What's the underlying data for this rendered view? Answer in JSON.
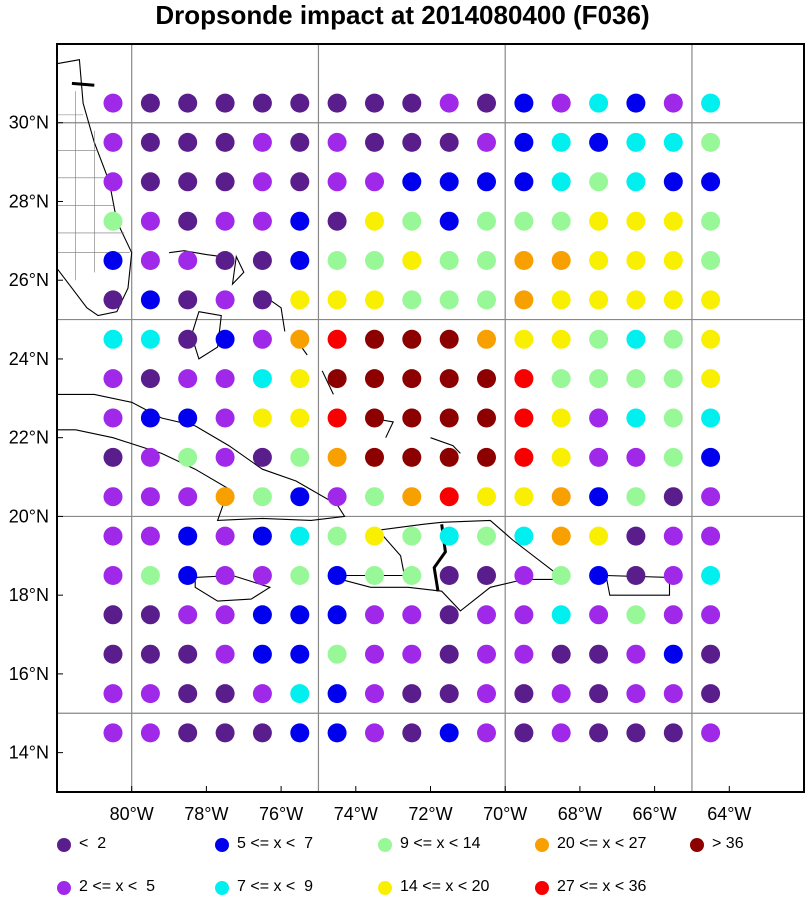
{
  "title": "Dropsonde impact at 2014080400 (F036)",
  "axes": {
    "lon_ticks": [
      "80°W",
      "78°W",
      "76°W",
      "74°W",
      "72°W",
      "70°W",
      "68°W",
      "66°W",
      "64°W"
    ],
    "lat_ticks": [
      "30°N",
      "28°N",
      "26°N",
      "24°N",
      "22°N",
      "20°N",
      "18°N",
      "16°N",
      "14°N"
    ],
    "lon_range": [
      -82,
      -62
    ],
    "lat_range": [
      13,
      32
    ]
  },
  "colors": {
    "c0": "#5a1e8c",
    "c1": "#a028e8",
    "c2": "#0000ee",
    "c3": "#00f0f0",
    "c4": "#98f898",
    "c5": "#f8f000",
    "c6": "#f8a000",
    "c7": "#f80000",
    "c8": "#8c0000"
  },
  "legend": [
    {
      "key": "c0",
      "label": "<  2"
    },
    {
      "key": "c1",
      "label": "2 <= x <  5"
    },
    {
      "key": "c2",
      "label": "5 <= x <  7"
    },
    {
      "key": "c3",
      "label": "7 <= x <  9"
    },
    {
      "key": "c4",
      "label": "9 <= x < 14"
    },
    {
      "key": "c5",
      "label": "14 <= x < 20"
    },
    {
      "key": "c6",
      "label": "20 <= x < 27"
    },
    {
      "key": "c7",
      "label": "27 <= x < 36"
    },
    {
      "key": "c8",
      "label": "> 36"
    }
  ],
  "chart_data": {
    "type": "scatter",
    "title": "Dropsonde impact at 2014080400 (F036)",
    "lons": [
      -80.5,
      -79.5,
      -78.5,
      -77.5,
      -76.5,
      -75.5,
      -74.5,
      -73.5,
      -72.5,
      -71.5,
      -70.5,
      -69.5,
      -68.5,
      -67.5,
      -66.5,
      -65.5,
      -64.5
    ],
    "lats": [
      30.5,
      29.5,
      28.5,
      27.5,
      26.5,
      25.5,
      24.5,
      23.5,
      22.5,
      21.5,
      20.5,
      19.5,
      18.5,
      17.5,
      16.5,
      15.5,
      14.5
    ],
    "category_rows": [
      "1,0,0,0,0,0,0,0,0,1,0,2,1,3,2,1,3",
      "1,0,0,0,1,0,1,0,0,0,1,2,3,2,3,3,4",
      "1,0,0,0,1,0,1,1,2,2,2,2,3,4,3,2,2",
      "4,1,0,1,1,2,0,5,4,2,4,4,4,5,5,5,4",
      "2,1,1,0,0,2,4,4,5,4,4,6,6,5,5,5,4",
      "0,2,0,1,0,5,5,5,4,4,4,6,5,5,5,5,5",
      "3,3,0,2,1,6,7,8,8,8,6,5,5,4,3,4,5",
      "1,0,1,1,3,5,8,8,8,8,8,7,4,4,4,4,5",
      "1,2,2,1,5,5,7,8,8,8,8,7,5,1,3,4,3",
      "0,1,4,1,0,4,6,8,8,8,8,7,5,1,1,4,2",
      "1,1,1,6,4,2,1,4,6,7,5,5,6,2,4,0,1",
      "1,1,2,1,2,3,4,5,4,3,4,3,6,5,0,1,1",
      "1,4,2,1,1,4,2,4,4,0,0,1,4,2,0,1,3",
      "0,0,1,1,2,2,2,1,1,0,1,1,3,1,4,1,1",
      "0,0,0,1,2,2,4,1,1,0,1,1,0,0,1,2,0",
      "1,1,0,0,1,3,2,1,0,0,1,0,1,0,1,1,0",
      "1,1,0,0,0,2,2,1,0,2,1,0,1,0,0,0,1"
    ]
  }
}
